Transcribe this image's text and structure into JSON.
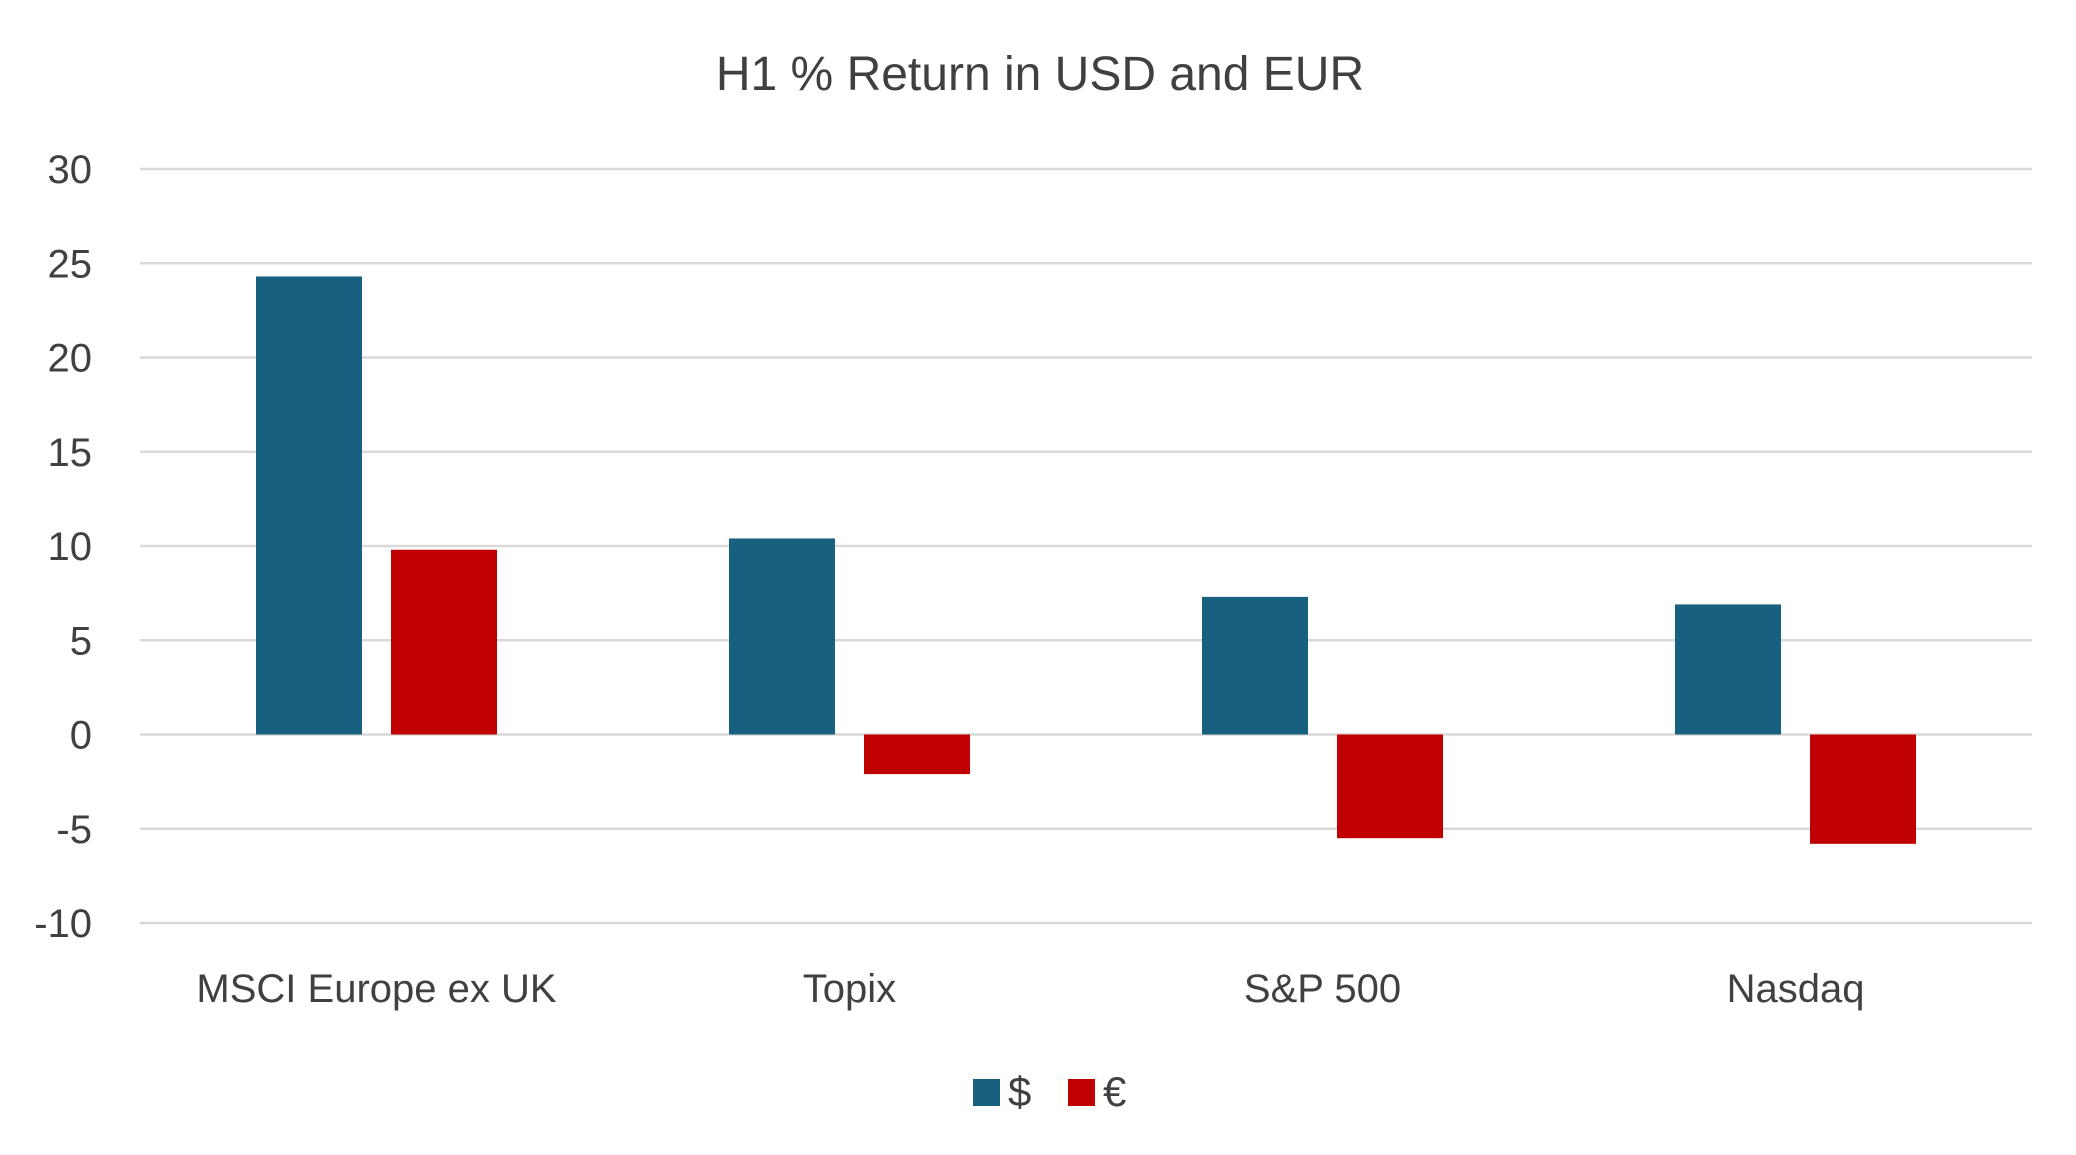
{
  "chart_data": {
    "type": "bar",
    "title": "H1 % Return in USD and EUR",
    "xlabel": "",
    "ylabel": "",
    "categories": [
      "MSCI Europe ex UK",
      "Topix",
      "S&P 500",
      "Nasdaq"
    ],
    "series": [
      {
        "name": "$",
        "color": "#17607f",
        "values": [
          24.3,
          10.4,
          7.3,
          6.9
        ]
      },
      {
        "name": "€",
        "color": "#c00000",
        "values": [
          9.8,
          -2.1,
          -5.5,
          -5.8
        ]
      }
    ],
    "ylim": [
      -10,
      30
    ],
    "yticks": [
      "30",
      "25",
      "20",
      "15",
      "10",
      "5",
      "0",
      "-5",
      "-10"
    ],
    "grid": true,
    "legend_position": "bottom"
  }
}
